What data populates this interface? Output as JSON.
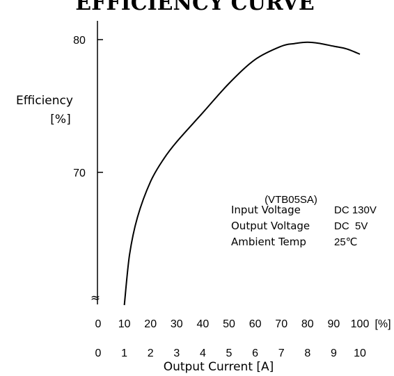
{
  "chart_data": {
    "type": "line",
    "title": "EFFICIENCY CURVE",
    "ylabel_line1": "Efficiency",
    "ylabel_line2": "[%]",
    "xlabel": "Output Current [A]",
    "x_percent_ticks": [
      "0",
      "10",
      "20",
      "30",
      "40",
      "50",
      "60",
      "70",
      "80",
      "90",
      "100"
    ],
    "x_percent_unit": "[%]",
    "x_amp_ticks": [
      "0",
      "1",
      "2",
      "3",
      "4",
      "5",
      "6",
      "7",
      "8",
      "9",
      "10"
    ],
    "y_ticks": [
      "70",
      "80"
    ],
    "y_break_symbol": "≈",
    "xlim": [
      0,
      10
    ],
    "ylim": [
      60,
      83
    ],
    "series": [
      {
        "x": [
          1.0,
          1.2,
          1.5,
          2.0,
          2.5,
          3.0,
          4.0,
          5.0,
          6.0,
          7.0,
          7.5,
          8.0,
          8.5,
          9.0,
          9.5,
          10.0
        ],
        "y": [
          60.0,
          63.8,
          66.6,
          69.3,
          71.0,
          72.3,
          74.5,
          76.7,
          78.5,
          79.5,
          79.7,
          79.8,
          79.7,
          79.5,
          79.3,
          78.9
        ]
      }
    ],
    "annotation": {
      "model": "(VTB05SA)",
      "rows": [
        {
          "label": "Input Voltage",
          "value": "DC 130V"
        },
        {
          "label": "Output Voltage",
          "value": "DC  5V"
        },
        {
          "label": "Ambient Temp",
          "value": "25℃"
        }
      ]
    },
    "grid": false,
    "legend": "none"
  }
}
